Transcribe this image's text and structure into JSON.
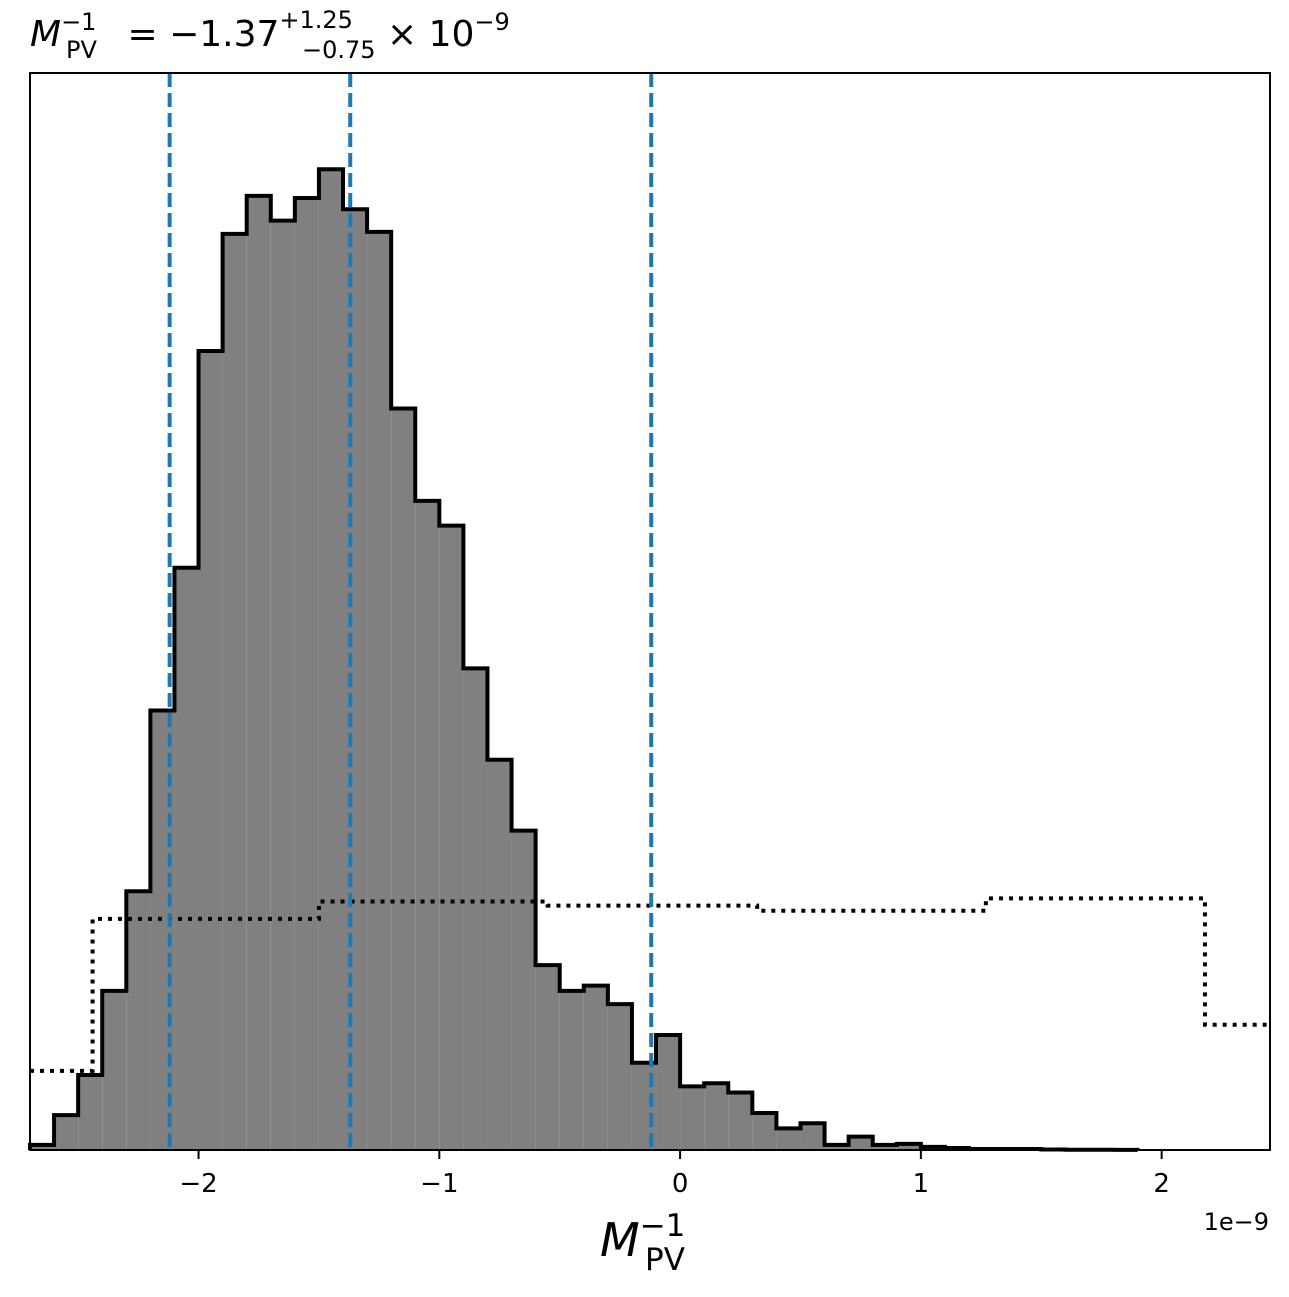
{
  "chart_data": {
    "type": "bar",
    "title": {
      "symbol": "M",
      "superscript": "−1",
      "subscript": "PV",
      "equals": " = ",
      "value": "−1.37",
      "upper": "+1.25",
      "lower": "−0.75",
      "times": " × 10",
      "exponent": "−9"
    },
    "xlabel": {
      "symbol": "M",
      "superscript": "−1",
      "subscript": "PV"
    },
    "ylabel": "",
    "x_offset_label": "1e−9",
    "xlim": [
      -2.7,
      2.45
    ],
    "ylim": [
      0,
      1
    ],
    "grid": false,
    "yticks_visible": false,
    "xticks": [
      {
        "value": -2,
        "label": "−2"
      },
      {
        "value": -1,
        "label": "−1"
      },
      {
        "value": 0,
        "label": "0"
      },
      {
        "value": 1,
        "label": "1"
      },
      {
        "value": 2,
        "label": "2"
      }
    ],
    "posterior_histogram": {
      "fill_color": "#808080",
      "edge_color": "#000000",
      "bin_start": -2.7,
      "bin_width": 0.1,
      "heights": [
        0.005,
        0.034,
        0.073,
        0.155,
        0.252,
        0.428,
        0.567,
        0.778,
        0.892,
        0.929,
        0.905,
        0.927,
        0.955,
        0.916,
        0.894,
        0.722,
        0.632,
        0.608,
        0.469,
        0.38,
        0.311,
        0.18,
        0.155,
        0.16,
        0.142,
        0.085,
        0.112,
        0.062,
        0.065,
        0.056,
        0.036,
        0.021,
        0.026,
        0.005,
        0.013,
        0.005,
        0.006,
        0.003,
        0.002,
        0.001,
        0.001,
        0.001,
        0.0005,
        0.0003,
        0.0002,
        0.0001
      ]
    },
    "prior_histogram": {
      "line_color": "#000000",
      "line_style": "dotted",
      "bins": [
        {
          "x0": -2.7,
          "x1": -2.44,
          "height": 0.077
        },
        {
          "x0": -2.44,
          "x1": -1.5,
          "height": 0.225
        },
        {
          "x0": -1.5,
          "x1": -0.55,
          "height": 0.242
        },
        {
          "x0": -0.55,
          "x1": 0.32,
          "height": 0.238
        },
        {
          "x0": 0.32,
          "x1": 1.27,
          "height": 0.233
        },
        {
          "x0": 1.27,
          "x1": 2.18,
          "height": 0.245
        },
        {
          "x0": 2.18,
          "x1": 2.45,
          "height": 0.122
        }
      ]
    },
    "quantile_lines": {
      "color": "#1f77b4",
      "line_style": "dashed",
      "values": [
        -2.12,
        -1.37,
        -0.12
      ]
    }
  }
}
